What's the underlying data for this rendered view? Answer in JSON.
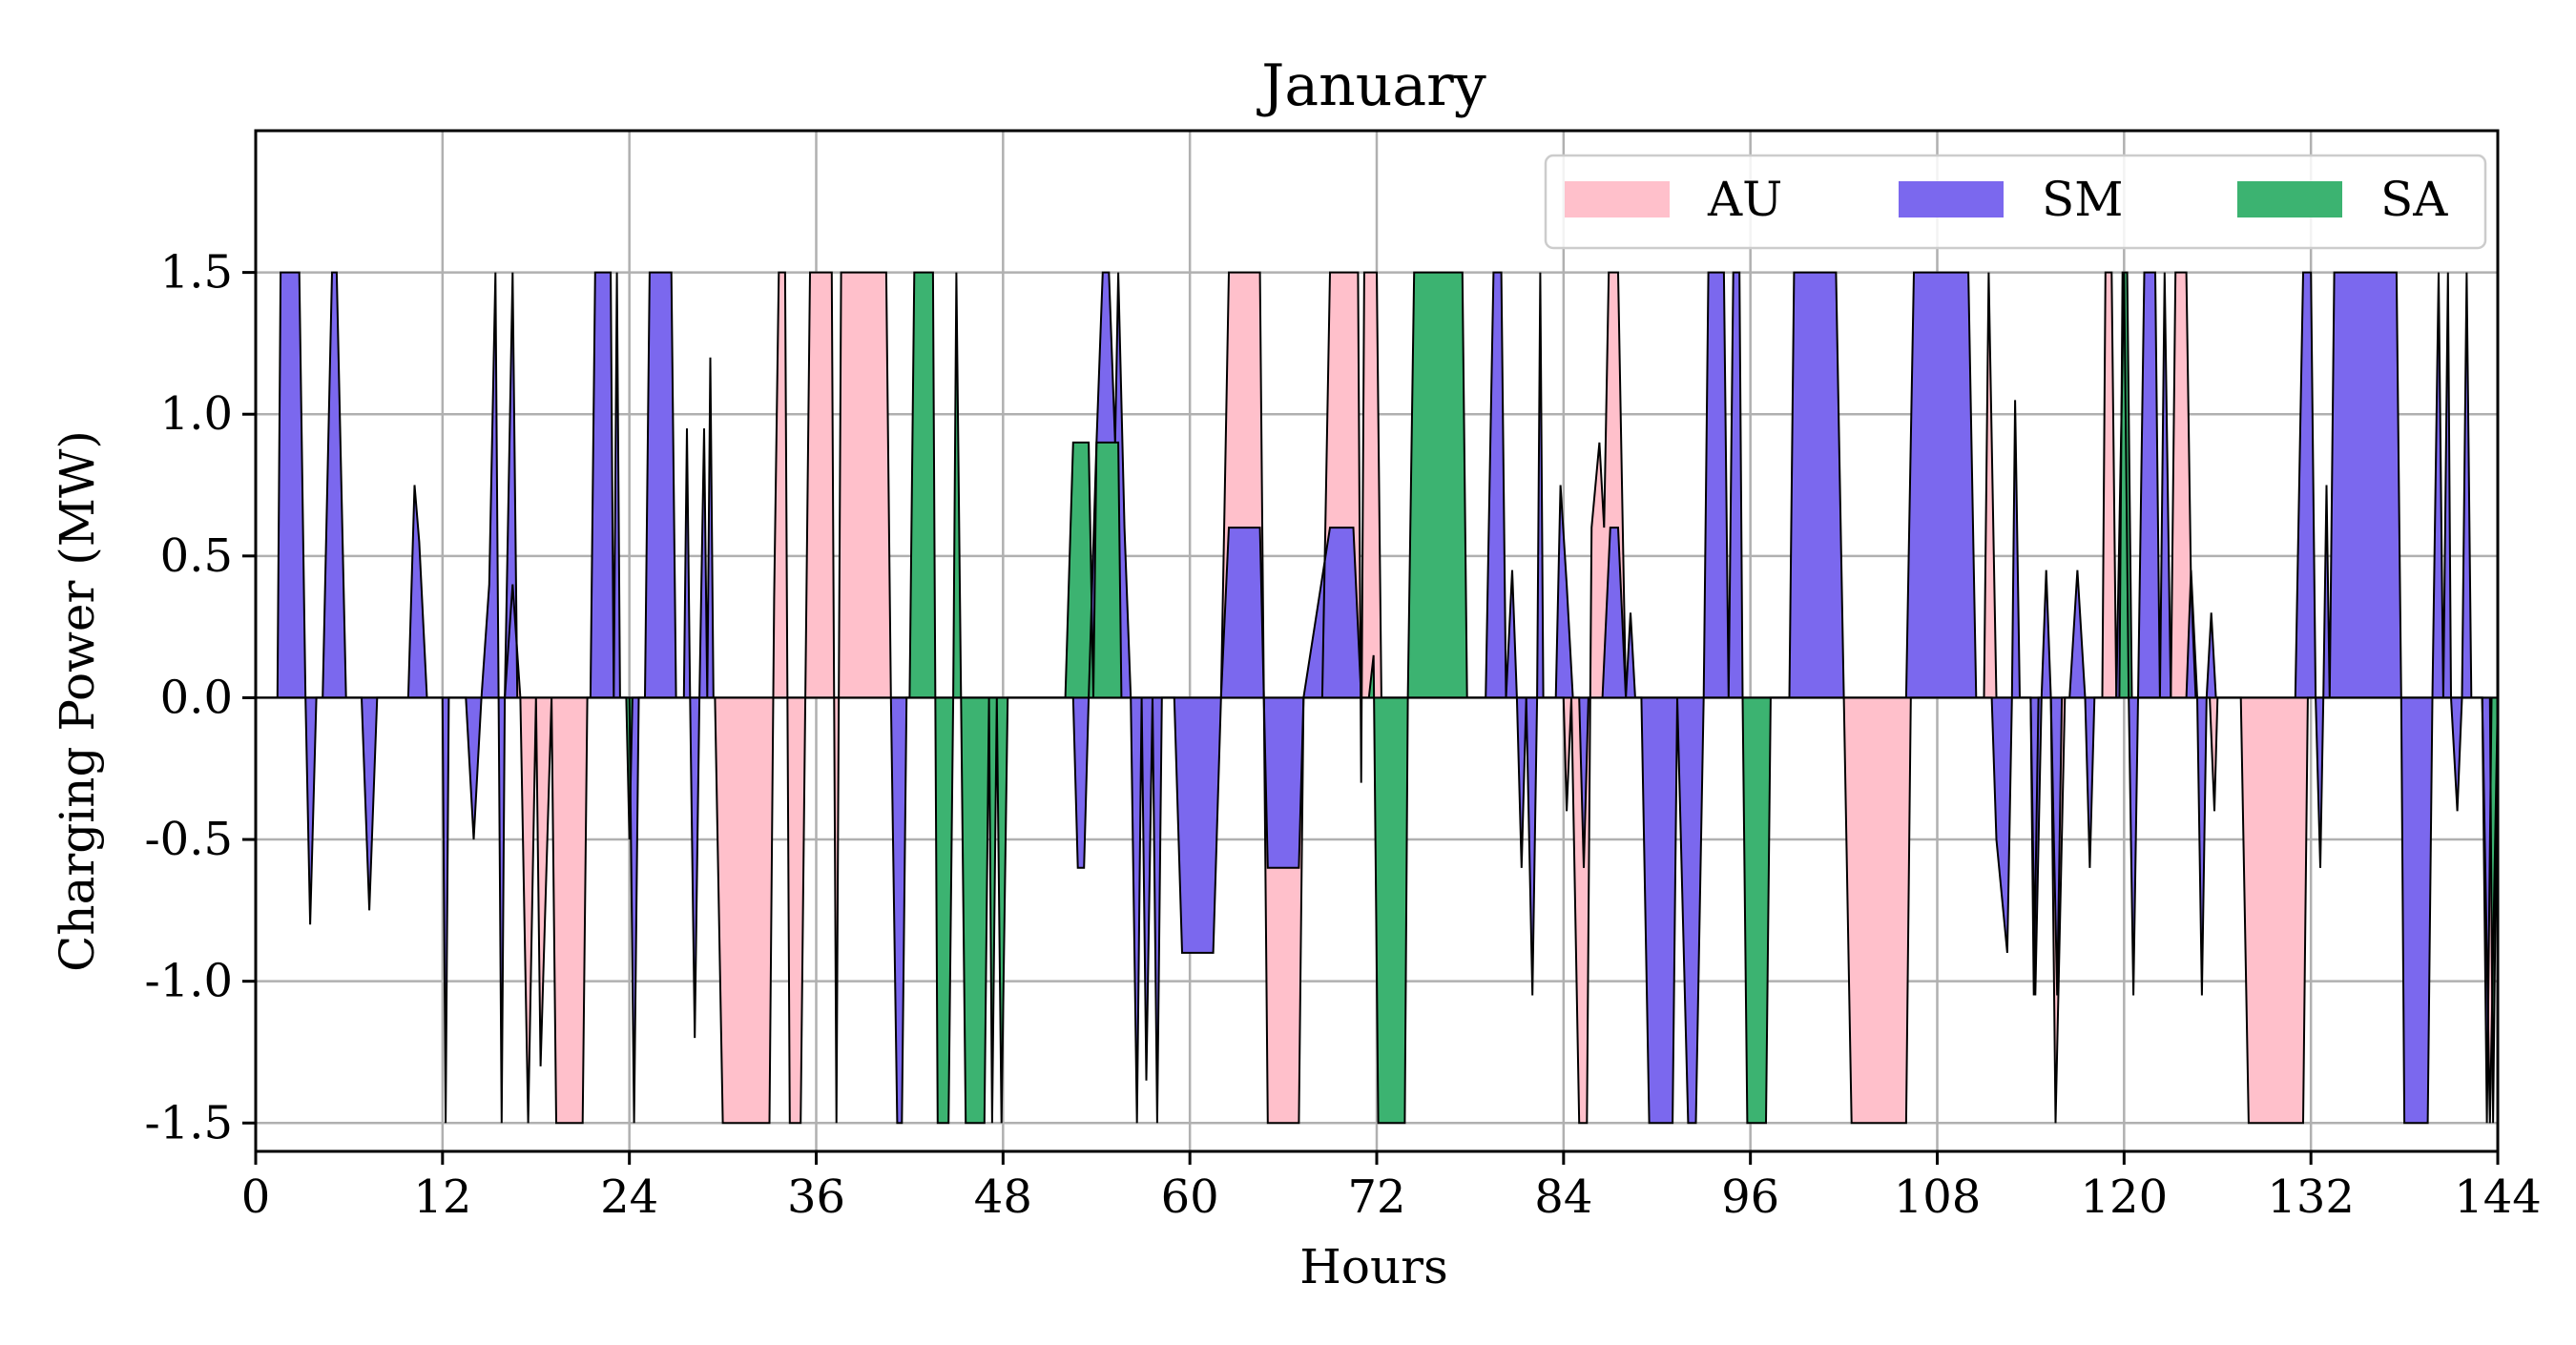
{
  "chart_data": {
    "type": "area",
    "title": "January",
    "xlabel": "Hours",
    "ylabel": "Charging Power (MW)",
    "xlim": [
      0,
      144
    ],
    "ylim": [
      -1.6,
      2.0
    ],
    "xticks": [
      0,
      12,
      24,
      36,
      48,
      60,
      72,
      84,
      96,
      108,
      120,
      132,
      144
    ],
    "yticks": [
      -1.5,
      -1.0,
      -0.5,
      0.0,
      0.5,
      1.0,
      1.5
    ],
    "ytick_labels": [
      "-1.5",
      "-1.0",
      "-0.5",
      "0.0",
      "0.5",
      "1.0",
      "1.5"
    ],
    "grid": true,
    "legend_position": "top-right",
    "series": [
      {
        "name": "AU",
        "color": "#ffc0cb",
        "points": [
          [
            0,
            0
          ],
          [
            16,
            0
          ],
          [
            16.5,
            0.4
          ],
          [
            17,
            0
          ],
          [
            17.5,
            -1.5
          ],
          [
            18,
            0
          ],
          [
            18.3,
            -1.3
          ],
          [
            19,
            0
          ],
          [
            19.3,
            -1.5
          ],
          [
            21,
            -1.5
          ],
          [
            21.3,
            0
          ],
          [
            29.5,
            0
          ],
          [
            30,
            -1.5
          ],
          [
            33,
            -1.5
          ],
          [
            33.3,
            0.35
          ],
          [
            33.6,
            1.5
          ],
          [
            34,
            1.5
          ],
          [
            34.3,
            -1.5
          ],
          [
            35,
            -1.5
          ],
          [
            35.3,
            0
          ],
          [
            35.6,
            1.5
          ],
          [
            37,
            1.5
          ],
          [
            37.3,
            -1.5
          ],
          [
            37.6,
            1.5
          ],
          [
            40.5,
            1.5
          ],
          [
            40.8,
            0
          ],
          [
            62,
            0
          ],
          [
            62.5,
            1.5
          ],
          [
            64.5,
            1.5
          ],
          [
            65,
            -1.5
          ],
          [
            67,
            -1.5
          ],
          [
            67.3,
            0
          ],
          [
            68.5,
            0
          ],
          [
            69,
            1.5
          ],
          [
            70.8,
            1.5
          ],
          [
            71,
            -0.3
          ],
          [
            71.2,
            1.5
          ],
          [
            72,
            1.5
          ],
          [
            72.3,
            0
          ],
          [
            84,
            0
          ],
          [
            84.2,
            -0.4
          ],
          [
            84.5,
            0
          ],
          [
            85,
            -1.5
          ],
          [
            85.5,
            -1.5
          ],
          [
            85.8,
            0.6
          ],
          [
            86.3,
            0.9
          ],
          [
            86.6,
            0.6
          ],
          [
            86.9,
            1.5
          ],
          [
            87.5,
            1.5
          ],
          [
            88,
            0
          ],
          [
            102,
            0
          ],
          [
            102.5,
            -1.5
          ],
          [
            106,
            -1.5
          ],
          [
            106.3,
            0
          ],
          [
            111,
            0
          ],
          [
            111.3,
            1.5
          ],
          [
            111.8,
            0
          ],
          [
            114,
            0
          ],
          [
            114.2,
            -1.05
          ],
          [
            114.5,
            0
          ],
          [
            115.3,
            0
          ],
          [
            115.6,
            -1.5
          ],
          [
            116.2,
            0
          ],
          [
            118.6,
            0
          ],
          [
            118.8,
            1.5
          ],
          [
            119.2,
            1.5
          ],
          [
            119.5,
            0
          ],
          [
            123,
            0
          ],
          [
            123.3,
            1.5
          ],
          [
            124,
            1.5
          ],
          [
            124.3,
            0.4
          ],
          [
            124.6,
            0
          ],
          [
            125.5,
            0
          ],
          [
            125.8,
            -0.4
          ],
          [
            126,
            0
          ],
          [
            127.5,
            0
          ],
          [
            128,
            -1.5
          ],
          [
            131.5,
            -1.5
          ],
          [
            131.8,
            0
          ],
          [
            143,
            0
          ],
          [
            143.5,
            -1.5
          ],
          [
            144,
            0
          ]
        ]
      },
      {
        "name": "SM",
        "color": "#7b68ee",
        "points": [
          [
            0,
            0
          ],
          [
            1.4,
            0
          ],
          [
            1.6,
            1.5
          ],
          [
            2.8,
            1.5
          ],
          [
            3.2,
            0
          ],
          [
            3.5,
            -0.8
          ],
          [
            3.9,
            0
          ],
          [
            4.3,
            0
          ],
          [
            4.9,
            1.5
          ],
          [
            5.2,
            1.5
          ],
          [
            5.8,
            0
          ],
          [
            6.8,
            0
          ],
          [
            7.3,
            -0.75
          ],
          [
            7.8,
            0
          ],
          [
            9.8,
            0
          ],
          [
            10.2,
            0.75
          ],
          [
            10.5,
            0.55
          ],
          [
            11,
            0
          ],
          [
            12,
            0
          ],
          [
            12.2,
            -1.5
          ],
          [
            12.4,
            0
          ],
          [
            13.5,
            0
          ],
          [
            14,
            -0.5
          ],
          [
            14.5,
            0
          ],
          [
            15,
            0.4
          ],
          [
            15.4,
            1.5
          ],
          [
            15.6,
            0
          ],
          [
            15.8,
            -1.5
          ],
          [
            16,
            0
          ],
          [
            16.5,
            1.5
          ],
          [
            16.8,
            0
          ],
          [
            21.5,
            0
          ],
          [
            21.8,
            1.5
          ],
          [
            22.8,
            1.5
          ],
          [
            23,
            0
          ],
          [
            23.2,
            1.5
          ],
          [
            23.4,
            0
          ],
          [
            24,
            0
          ],
          [
            24.3,
            -1.5
          ],
          [
            24.6,
            0
          ],
          [
            25,
            0
          ],
          [
            25.3,
            1.5
          ],
          [
            26.7,
            1.5
          ],
          [
            27,
            0
          ],
          [
            27.5,
            0
          ],
          [
            27.7,
            0.95
          ],
          [
            27.9,
            0
          ],
          [
            28.2,
            -1.2
          ],
          [
            28.5,
            0
          ],
          [
            28.8,
            0.95
          ],
          [
            29,
            0
          ],
          [
            29.2,
            1.2
          ],
          [
            29.4,
            0
          ],
          [
            40.8,
            0
          ],
          [
            41.2,
            -1.5
          ],
          [
            41.5,
            -1.5
          ],
          [
            41.8,
            0
          ],
          [
            52.5,
            0
          ],
          [
            52.8,
            -0.6
          ],
          [
            53.2,
            -0.6
          ],
          [
            53.5,
            0
          ],
          [
            54,
            0.9
          ],
          [
            54.4,
            1.5
          ],
          [
            54.8,
            1.5
          ],
          [
            55.2,
            0.9
          ],
          [
            55.4,
            1.5
          ],
          [
            55.8,
            0.6
          ],
          [
            56.2,
            0
          ],
          [
            56.6,
            -1.5
          ],
          [
            56.9,
            0
          ],
          [
            57.2,
            -1.35
          ],
          [
            57.6,
            0
          ],
          [
            57.9,
            -1.5
          ],
          [
            58.2,
            0
          ],
          [
            59,
            0
          ],
          [
            59.5,
            -0.9
          ],
          [
            61.5,
            -0.9
          ],
          [
            62,
            0
          ],
          [
            62.5,
            0.6
          ],
          [
            64.5,
            0.6
          ],
          [
            65,
            -0.6
          ],
          [
            67,
            -0.6
          ],
          [
            67.3,
            0
          ],
          [
            69,
            0.6
          ],
          [
            70.5,
            0.6
          ],
          [
            71,
            0
          ],
          [
            79,
            0
          ],
          [
            79.5,
            1.5
          ],
          [
            80,
            1.5
          ],
          [
            80.3,
            0
          ],
          [
            80.7,
            0.45
          ],
          [
            81,
            0
          ],
          [
            81.3,
            -0.6
          ],
          [
            81.6,
            0
          ],
          [
            82,
            -1.05
          ],
          [
            82.3,
            0
          ],
          [
            82.5,
            1.5
          ],
          [
            82.7,
            0
          ],
          [
            83.5,
            0
          ],
          [
            83.8,
            0.75
          ],
          [
            84.2,
            0.4
          ],
          [
            84.6,
            0
          ],
          [
            85,
            0
          ],
          [
            85.3,
            -0.6
          ],
          [
            85.6,
            0
          ],
          [
            86.5,
            0
          ],
          [
            87,
            0.6
          ],
          [
            87.5,
            0.6
          ],
          [
            88,
            0
          ],
          [
            88.3,
            0.3
          ],
          [
            88.6,
            0
          ],
          [
            89,
            0
          ],
          [
            89.5,
            -1.5
          ],
          [
            91,
            -1.5
          ],
          [
            91.3,
            0
          ],
          [
            92,
            -1.5
          ],
          [
            92.5,
            -1.5
          ],
          [
            93,
            0
          ],
          [
            93.3,
            1.5
          ],
          [
            94.3,
            1.5
          ],
          [
            94.6,
            0
          ],
          [
            94.9,
            1.5
          ],
          [
            95.3,
            1.5
          ],
          [
            95.5,
            0
          ],
          [
            98.5,
            0
          ],
          [
            98.8,
            1.5
          ],
          [
            101.5,
            1.5
          ],
          [
            102,
            0
          ],
          [
            106,
            0
          ],
          [
            106.5,
            1.5
          ],
          [
            110,
            1.5
          ],
          [
            110.5,
            0
          ],
          [
            111.5,
            0
          ],
          [
            111.8,
            -0.5
          ],
          [
            112.5,
            -0.9
          ],
          [
            112.8,
            0
          ],
          [
            113,
            1.05
          ],
          [
            113.3,
            0
          ],
          [
            114,
            0
          ],
          [
            114.3,
            -1.05
          ],
          [
            114.7,
            0
          ],
          [
            115,
            0.45
          ],
          [
            115.3,
            0
          ],
          [
            115.7,
            -1.05
          ],
          [
            116,
            0
          ],
          [
            116.5,
            0
          ],
          [
            117,
            0.45
          ],
          [
            117.5,
            0
          ],
          [
            117.8,
            -0.6
          ],
          [
            118.1,
            0
          ],
          [
            119.5,
            0
          ],
          [
            120,
            1.5
          ],
          [
            120.3,
            0
          ],
          [
            120.6,
            -1.05
          ],
          [
            120.9,
            0
          ],
          [
            121.3,
            1.5
          ],
          [
            122,
            1.5
          ],
          [
            122.3,
            0
          ],
          [
            122.6,
            1.5
          ],
          [
            123,
            0
          ],
          [
            124,
            0
          ],
          [
            124.3,
            0.45
          ],
          [
            124.7,
            0
          ],
          [
            125,
            -1.05
          ],
          [
            125.3,
            0
          ],
          [
            125.6,
            0.3
          ],
          [
            125.9,
            0
          ],
          [
            131,
            0
          ],
          [
            131.5,
            1.5
          ],
          [
            132,
            1.5
          ],
          [
            132.3,
            0
          ],
          [
            132.6,
            -0.6
          ],
          [
            132.8,
            0
          ],
          [
            133,
            0.75
          ],
          [
            133.2,
            0
          ],
          [
            133.5,
            1.5
          ],
          [
            137.5,
            1.5
          ],
          [
            137.8,
            0
          ],
          [
            138,
            -1.5
          ],
          [
            139.5,
            -1.5
          ],
          [
            139.8,
            0
          ],
          [
            140.2,
            1.5
          ],
          [
            140.5,
            0
          ],
          [
            140.8,
            1.5
          ],
          [
            141,
            0
          ],
          [
            141.4,
            -0.4
          ],
          [
            141.7,
            0
          ],
          [
            142,
            1.5
          ],
          [
            142.3,
            0
          ],
          [
            143,
            0
          ],
          [
            143.3,
            -1.5
          ],
          [
            143.6,
            0
          ],
          [
            144,
            0
          ]
        ]
      },
      {
        "name": "SA",
        "color": "#3cb371",
        "points": [
          [
            0,
            0
          ],
          [
            23.8,
            0
          ],
          [
            24,
            -0.5
          ],
          [
            24.2,
            0
          ],
          [
            42,
            0
          ],
          [
            42.3,
            1.5
          ],
          [
            43.5,
            1.5
          ],
          [
            43.8,
            -1.5
          ],
          [
            44.5,
            -1.5
          ],
          [
            44.8,
            0
          ],
          [
            45,
            1.5
          ],
          [
            45.3,
            0
          ],
          [
            45.6,
            -1.5
          ],
          [
            46.8,
            -1.5
          ],
          [
            47.1,
            0
          ],
          [
            47.3,
            -1.5
          ],
          [
            47.6,
            0
          ],
          [
            47.9,
            -1.5
          ],
          [
            48.3,
            0
          ],
          [
            52,
            0
          ],
          [
            52.5,
            0.9
          ],
          [
            53.5,
            0.9
          ],
          [
            53.8,
            0
          ],
          [
            54,
            0.9
          ],
          [
            55.4,
            0.9
          ],
          [
            55.6,
            0
          ],
          [
            71.5,
            0
          ],
          [
            71.8,
            0.15
          ],
          [
            72.1,
            -1.5
          ],
          [
            73.8,
            -1.5
          ],
          [
            74,
            0
          ],
          [
            74.4,
            1.5
          ],
          [
            77.5,
            1.5
          ],
          [
            77.8,
            0
          ],
          [
            95.5,
            0
          ],
          [
            95.8,
            -1.5
          ],
          [
            97,
            -1.5
          ],
          [
            97.3,
            0
          ],
          [
            119.7,
            0
          ],
          [
            119.9,
            1.5
          ],
          [
            120.2,
            1.5
          ],
          [
            120.5,
            0
          ],
          [
            143.5,
            0
          ],
          [
            143.7,
            -1.5
          ],
          [
            144,
            0
          ]
        ]
      }
    ]
  }
}
